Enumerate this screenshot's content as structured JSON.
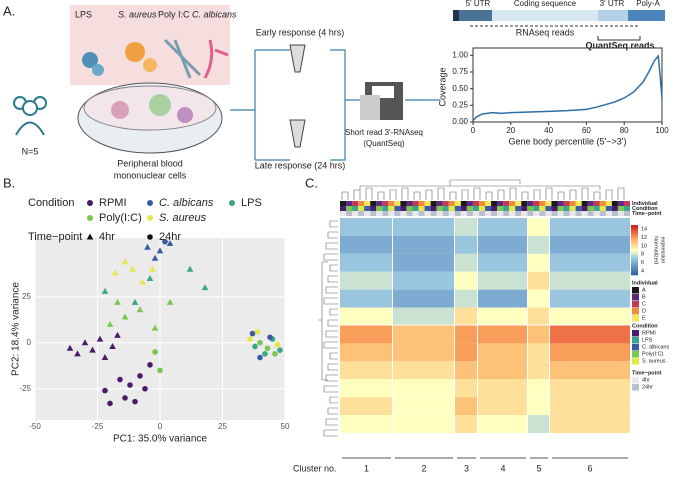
{
  "panel_labels": [
    "A.",
    "B.",
    "C."
  ],
  "schematic": {
    "stimuli": [
      "LPS",
      "S. aureus",
      "Poly I:C",
      "C. albicans"
    ],
    "donors": "N=5",
    "pbmc_label": [
      "Peripheral blood",
      "mononuclear cells"
    ],
    "early": "Early response (4 hrs)",
    "late": "Late response (24 hrs)",
    "sequencing": [
      "Short read 3'-RNAseq",
      "(QuantSeq)"
    ],
    "gene": {
      "utr5": "5' UTR",
      "cds": "Coding sequence",
      "utr3": "3' UTR",
      "polya": "Poly-A",
      "rnaseq": "RNAseq reads",
      "quantseq": "QuantSeq reads"
    }
  },
  "chart_data": [
    {
      "type": "line",
      "ylabel": "Coverage",
      "xlabel": "Gene body percentile (5'−>3')",
      "color": "#2f6fa6",
      "x": [
        0,
        2,
        5,
        10,
        15,
        20,
        30,
        40,
        50,
        60,
        65,
        70,
        75,
        80,
        85,
        90,
        93,
        96,
        98,
        99,
        100
      ],
      "values": [
        0.02,
        0.08,
        0.12,
        0.14,
        0.13,
        0.14,
        0.15,
        0.16,
        0.17,
        0.19,
        0.22,
        0.26,
        0.3,
        0.36,
        0.45,
        0.6,
        0.75,
        0.92,
        0.99,
        0.7,
        0.35
      ],
      "xlim": [
        0,
        100
      ],
      "xticks": [
        0,
        20,
        40,
        60,
        80,
        100
      ],
      "ylim": [
        0,
        1.05
      ],
      "yticks": [
        {
          "value": 0,
          "label": "0.00"
        },
        {
          "value": 0.25,
          "label": "0.25"
        },
        {
          "value": 0.5,
          "label": "0.50"
        },
        {
          "value": 0.75,
          "label": "0.75"
        },
        {
          "value": 1,
          "label": "1.00"
        }
      ]
    },
    {
      "type": "scatter",
      "xlabel": "PC1: 35.0% variance",
      "ylabel": "PC2: 18.4% variance",
      "legend_title": "Condition",
      "shape_title": "Time−point",
      "conditions": [
        {
          "name": "RPMI",
          "color": "#4b1a6b"
        },
        {
          "name": "C. albicans",
          "color": "#3b5ba5"
        },
        {
          "name": "LPS",
          "color": "#3aa68a"
        },
        {
          "name": "Poly(I:C)",
          "color": "#7ac74f"
        },
        {
          "name": "S. aureus",
          "color": "#e4e84a"
        }
      ],
      "timepoints": [
        {
          "name": "4hr",
          "shape": "triangle"
        },
        {
          "name": "24hr",
          "shape": "circle"
        }
      ],
      "groups": [
        {
          "condition": "RPMI",
          "time": "4hr",
          "x": [
            -36,
            -33,
            -30,
            -27,
            -24,
            -22,
            -19,
            -17
          ],
          "y": [
            -3,
            -6,
            0,
            -4,
            2,
            -8,
            -2,
            4
          ]
        },
        {
          "condition": "RPMI",
          "time": "24hr",
          "x": [
            -22,
            -20,
            -16,
            -14,
            -12,
            -10,
            -8,
            -6,
            -4
          ],
          "y": [
            -26,
            -33,
            -20,
            -30,
            -23,
            -32,
            -18,
            -25,
            -12
          ]
        },
        {
          "condition": "LPS",
          "time": "4hr",
          "x": [
            -22,
            -10,
            -4,
            12,
            18
          ],
          "y": [
            28,
            22,
            35,
            40,
            30
          ]
        },
        {
          "condition": "LPS",
          "time": "24hr",
          "x": [
            38,
            42,
            45,
            48
          ],
          "y": [
            -2,
            -6,
            2,
            -4
          ]
        },
        {
          "condition": "C. albicans",
          "time": "4hr",
          "x": [
            -5,
            0,
            4,
            -2
          ],
          "y": [
            52,
            50,
            54,
            46
          ]
        },
        {
          "condition": "C. albicans",
          "time": "24hr",
          "x": [
            2,
            40,
            44,
            37
          ],
          "y": [
            55,
            -8,
            3,
            5
          ]
        },
        {
          "condition": "Poly(I:C)",
          "time": "4hr",
          "x": [
            -20,
            -14,
            -8,
            -2,
            4,
            -17
          ],
          "y": [
            10,
            14,
            18,
            8,
            22,
            22
          ]
        },
        {
          "condition": "Poly(I:C)",
          "time": "24hr",
          "x": [
            -2,
            0,
            40,
            43,
            46
          ],
          "y": [
            -5,
            -15,
            0,
            -3,
            -6
          ]
        },
        {
          "condition": "S. aureus",
          "time": "4hr",
          "x": [
            -18,
            -14,
            -11,
            -7,
            -3
          ],
          "y": [
            38,
            44,
            40,
            33,
            40
          ]
        },
        {
          "condition": "S. aureus",
          "time": "24hr",
          "x": [
            36,
            39,
            47
          ],
          "y": [
            2,
            6,
            -1
          ]
        }
      ],
      "xlim": [
        -50,
        50
      ],
      "xticks": [
        -50,
        -25,
        0,
        25,
        50
      ],
      "ylim": [
        -42,
        57
      ],
      "yticks": [
        -25,
        0,
        25
      ],
      "grid": true
    },
    {
      "type": "heatmap",
      "annotation_titles": [
        "Individual",
        "Condition",
        "Time−point"
      ],
      "colorbar_title": [
        "Normalized",
        "expression"
      ],
      "clim": [
        3,
        15
      ],
      "cticks": [
        14,
        12,
        10,
        8,
        6,
        4
      ],
      "individuals": [
        {
          "name": "A",
          "color": "#1a1a1a"
        },
        {
          "name": "B",
          "color": "#5a2a82"
        },
        {
          "name": "C",
          "color": "#c23b54"
        },
        {
          "name": "D",
          "color": "#f08a3c"
        },
        {
          "name": "E",
          "color": "#f6e65a"
        }
      ],
      "conditions": [
        {
          "name": "RPMI",
          "color": "#4b1a6b"
        },
        {
          "name": "LPS",
          "color": "#3aa68a"
        },
        {
          "name": "C. albicans",
          "color": "#3b5ba5"
        },
        {
          "name": "Poly(I:C)",
          "color": "#7ac74f"
        },
        {
          "name": "S. aureus",
          "color": "#e4e84a"
        }
      ],
      "timepoints": [
        {
          "name": "4hr",
          "color": "#e8e8e8"
        },
        {
          "name": "24hr",
          "color": "#b9bfd0"
        }
      ],
      "cluster_title": "Cluster no.",
      "categories": [
        "1",
        "2",
        "3",
        "4",
        "5",
        "6"
      ],
      "values": [
        [
          7,
          7,
          8,
          7,
          9,
          7
        ],
        [
          6,
          6,
          7,
          6,
          8,
          6
        ],
        [
          7,
          6,
          8,
          7,
          9,
          7
        ],
        [
          8,
          7,
          9,
          8,
          10,
          8
        ],
        [
          7,
          6,
          8,
          6,
          9,
          7
        ],
        [
          9,
          8,
          10,
          9,
          10,
          9
        ],
        [
          12,
          11,
          12,
          12,
          11,
          13
        ],
        [
          11,
          11,
          12,
          11,
          10,
          12
        ],
        [
          10,
          10,
          11,
          11,
          10,
          11
        ],
        [
          9,
          9,
          10,
          10,
          9,
          10
        ],
        [
          10,
          9,
          11,
          10,
          9,
          10
        ],
        [
          9,
          9,
          10,
          9,
          8,
          10
        ]
      ]
    }
  ]
}
